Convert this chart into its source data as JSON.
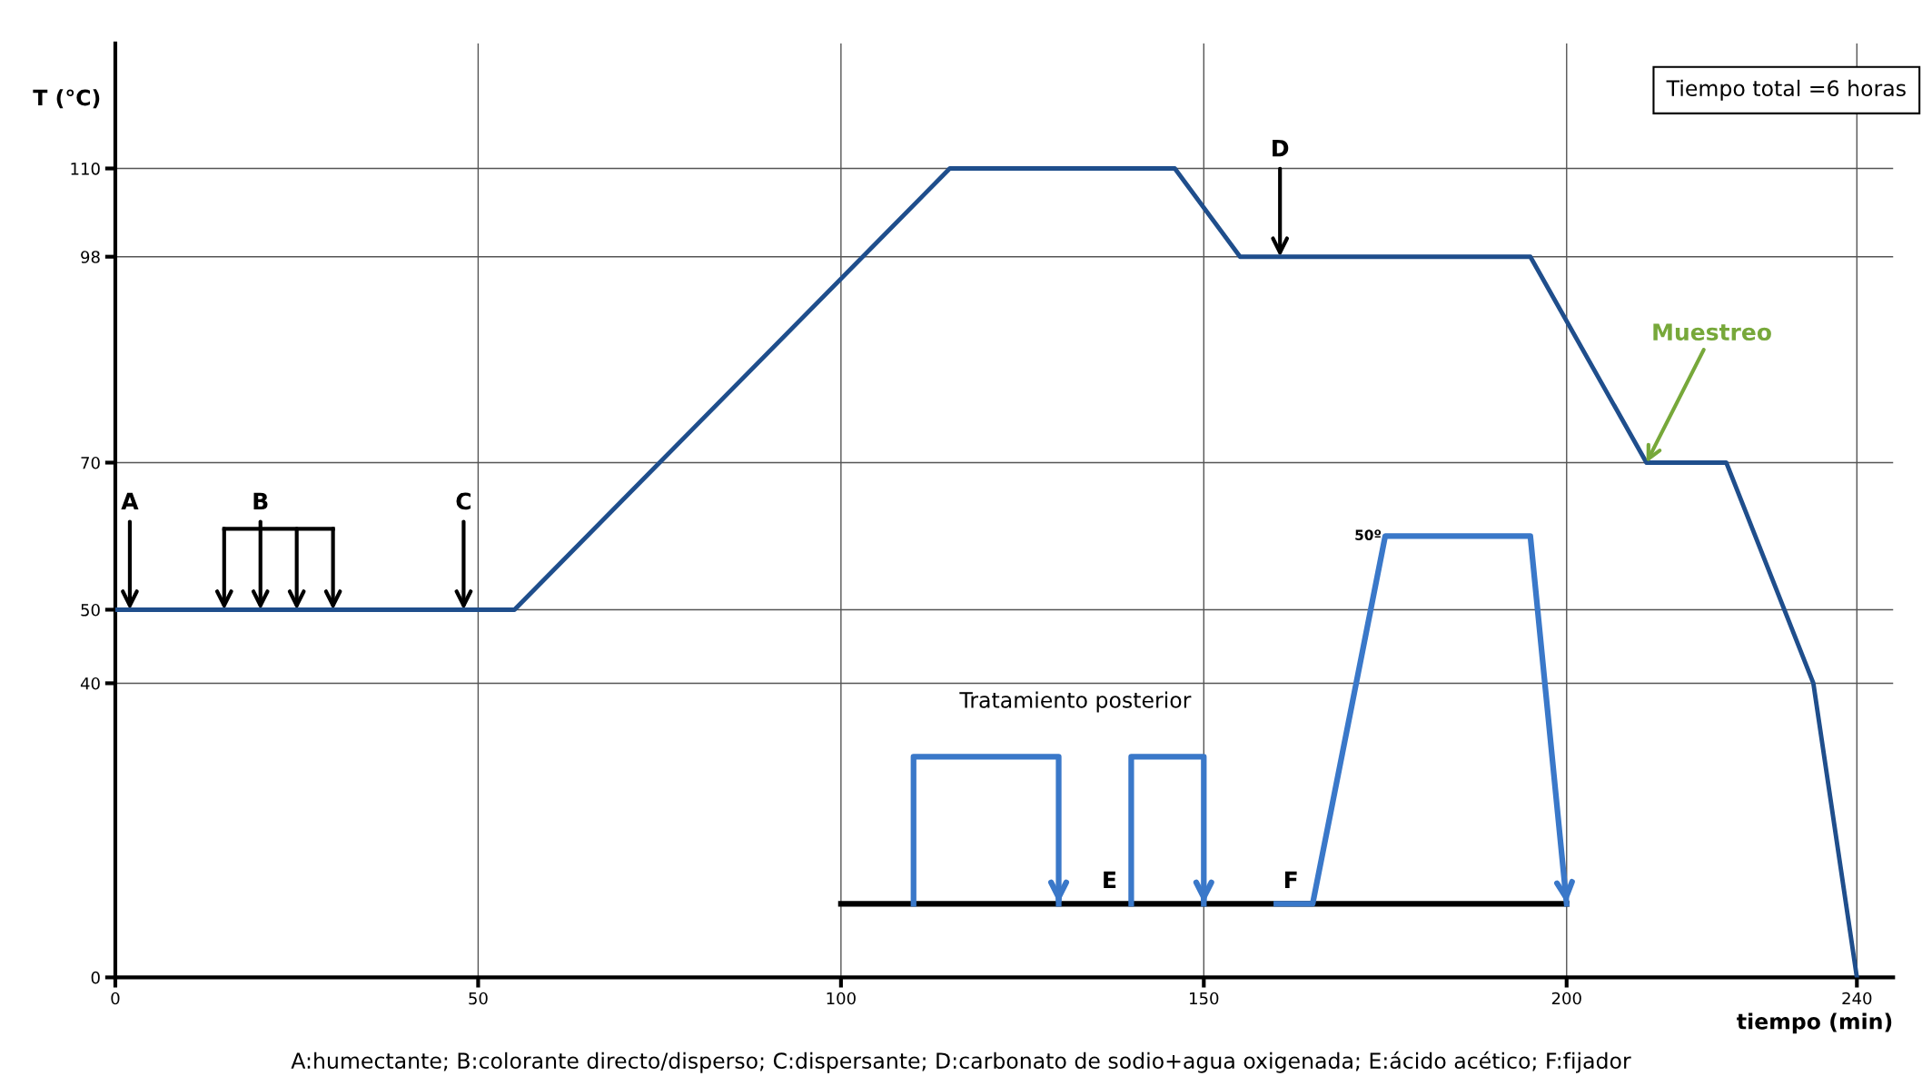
{
  "chart_data": {
    "type": "line",
    "xlabel": "tiempo (min)",
    "ylabel": "T (°C)",
    "xlim": [
      0,
      245
    ],
    "ylim": [
      0,
      127
    ],
    "xticks": [
      0,
      50,
      100,
      150,
      200,
      240
    ],
    "yticks": [
      0,
      40,
      50,
      70,
      98,
      110
    ],
    "grid": true,
    "marker": "none",
    "line_style": "solid",
    "series": [
      {
        "color": "#1f4e8c",
        "x": [
          0,
          55,
          115,
          146,
          155,
          195,
          211,
          222,
          234,
          240
        ],
        "values": [
          50,
          50,
          110,
          110,
          98,
          98,
          70,
          70,
          40,
          0
        ]
      },
      {
        "color": "#000000",
        "x": [
          100,
          200
        ],
        "values": [
          10,
          10
        ]
      },
      {
        "color": "#3a78c9",
        "x": [
          110,
          110,
          130,
          130
        ],
        "values": [
          10,
          30,
          30,
          10
        ]
      },
      {
        "color": "#3a78c9",
        "x": [
          140,
          140,
          150,
          150
        ],
        "values": [
          10,
          30,
          30,
          10
        ]
      },
      {
        "color": "#3a78c9",
        "x": [
          160,
          165,
          175,
          195,
          200
        ],
        "values": [
          10,
          10,
          60,
          60,
          10
        ]
      }
    ],
    "annotations": [
      {
        "text": "A",
        "x": 2,
        "y": 50
      },
      {
        "text": "B",
        "x": 20,
        "y": 50
      },
      {
        "text": "C",
        "x": 48,
        "y": 50
      },
      {
        "text": "D",
        "x": 160.5,
        "y": 98
      },
      {
        "text": "Muestreo",
        "x": 211,
        "y": 70
      },
      {
        "text": "E",
        "x": 137,
        "y": 10
      },
      {
        "text": "F",
        "x": 162,
        "y": 10
      },
      {
        "text": "50º",
        "x": 175,
        "y": 60
      },
      "Tratamiento posterior",
      "Tiempo total =6 horas",
      "A:humectante; B:colorante directo/disperso; C:dispersante; D:carbonato de sodio+agua oxigenada; E:ácido acético; F:fijador"
    ]
  }
}
